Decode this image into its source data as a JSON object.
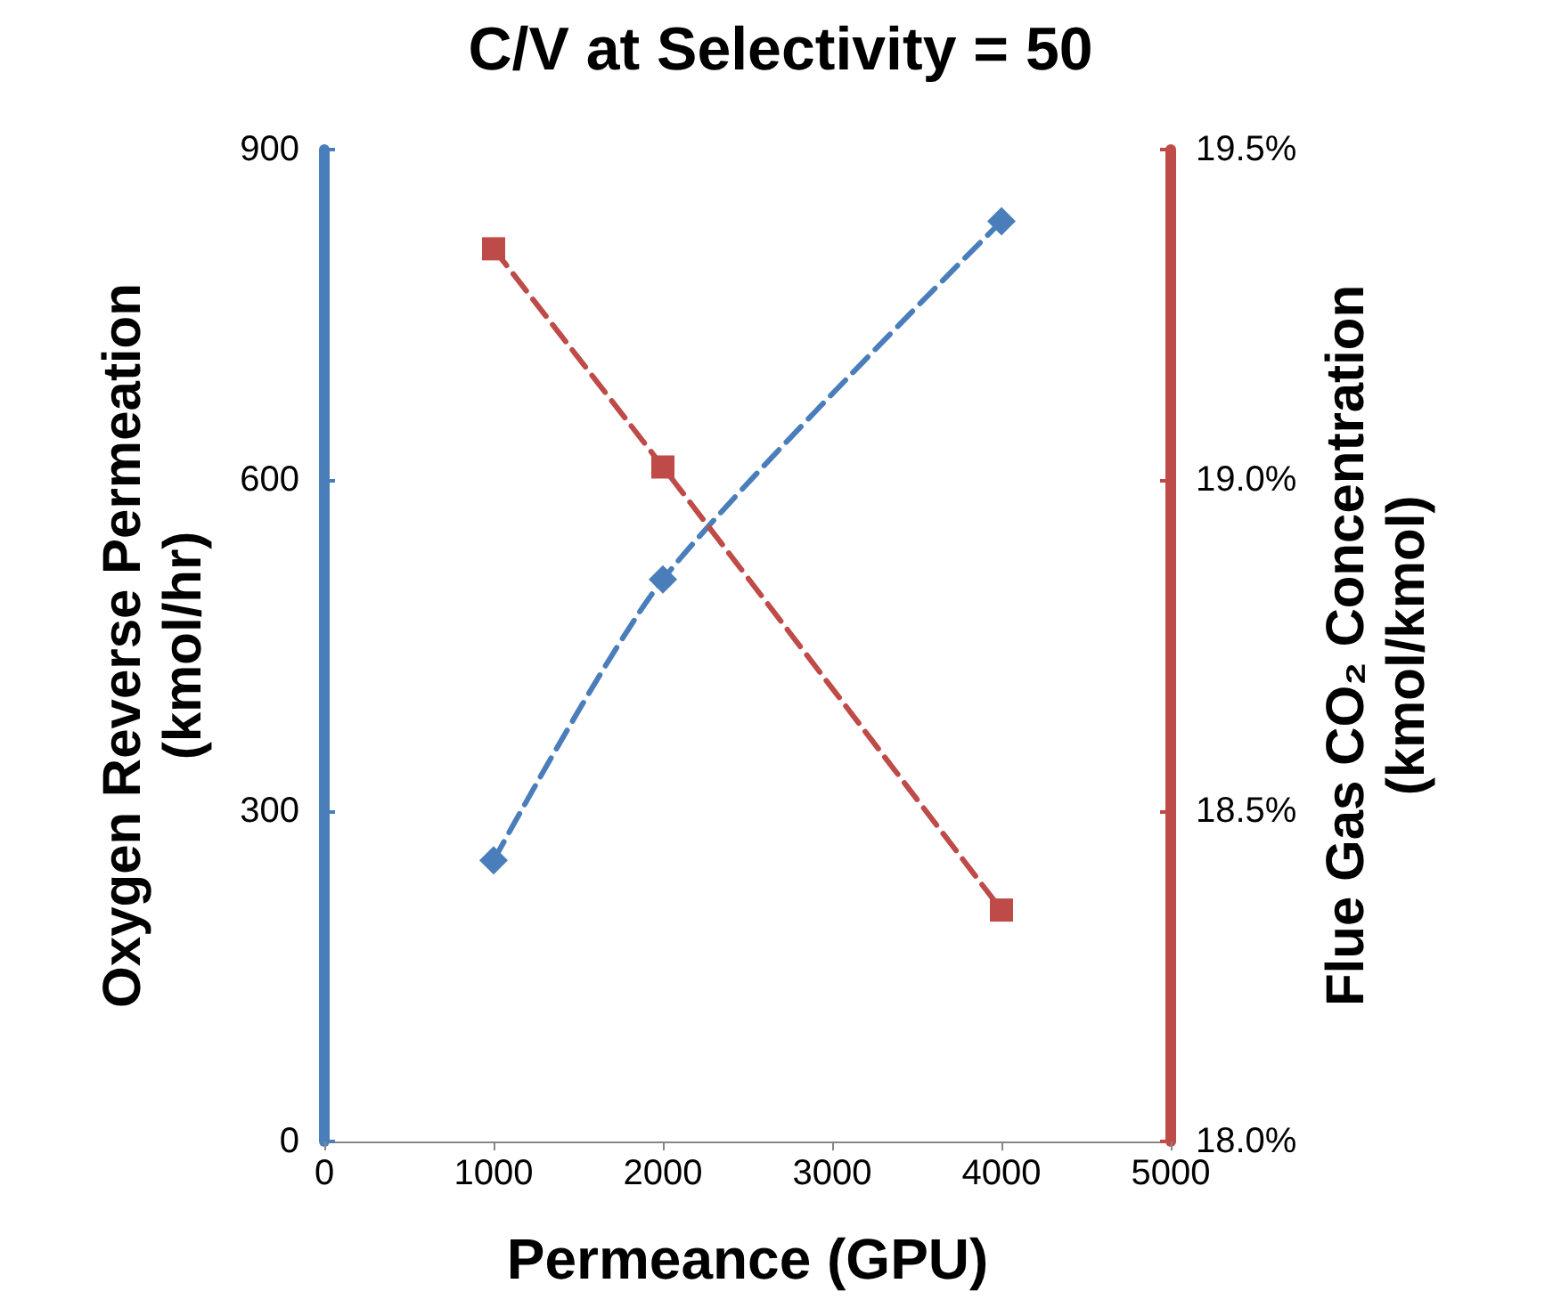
{
  "chart_data": {
    "type": "line",
    "title": "C/V at Selectivity = 50",
    "xlabel": "Permeance (GPU)",
    "ylabel": "Oxygen Reverse Permeation\n(kmol/hr)",
    "y2label": "Flue Gas CO₂ Concentration\n(kmol/kmol)",
    "x": [
      1000,
      2000,
      4000
    ],
    "series": [
      {
        "color": "#4a7ebb",
        "values": [
          255,
          510,
          835
        ],
        "marker": "diamond"
      },
      {
        "color": "#be4b48",
        "values": [
          19.35,
          19.02,
          18.35
        ],
        "marker": "square",
        "axis": "y2"
      }
    ],
    "xlim": [
      0,
      5000
    ],
    "xticks": [
      0,
      1000,
      2000,
      3000,
      4000,
      5000
    ],
    "ylim": [
      0,
      900
    ],
    "yticks": [
      0,
      300,
      600,
      900
    ],
    "y2lim": [
      18.0,
      19.5
    ],
    "y2ticks": [
      {
        "value": 18.0,
        "label": "18.0%"
      },
      {
        "value": 18.5,
        "label": "18.5%"
      },
      {
        "value": 19.0,
        "label": "19.0%"
      },
      {
        "value": 19.5,
        "label": "19.5%"
      }
    ],
    "line_style": "dashed"
  }
}
